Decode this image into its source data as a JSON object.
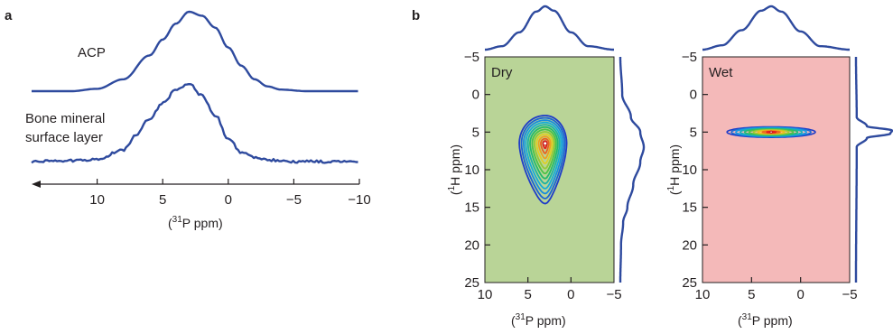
{
  "panels": {
    "a": {
      "letter": "a",
      "xlabel_main": "(",
      "xlabel_sup": "31",
      "xlabel_rest": "P ppm)",
      "x_ticks": [
        "10",
        "5",
        "0",
        "−5",
        "−10"
      ]
    },
    "b": {
      "letter": "b",
      "xlabel_main": "(",
      "xlabel_sup": "31",
      "xlabel_rest": "P ppm)",
      "ylabel_main": "(",
      "ylabel_sup": "1",
      "ylabel_rest": "H ppm)",
      "x_ticks": [
        "10",
        "5",
        "0",
        "−5"
      ],
      "y_ticks": [
        "−5",
        "0",
        "5",
        "10",
        "15",
        "20",
        "25"
      ],
      "dry_label": "Dry",
      "wet_label": "Wet"
    }
  },
  "colors": {
    "trace": "#2e4a9e",
    "dry_bg": "#b9d497",
    "wet_bg": "#f4b9b9"
  },
  "chart_data": [
    {
      "type": "line",
      "panel": "a",
      "xlabel": "(31P ppm)",
      "ylabel": "",
      "xlim": [
        15,
        -10
      ],
      "x_reversed": true,
      "x_ticks": [
        10,
        5,
        0,
        -5,
        -10
      ],
      "series": [
        {
          "name": "ACP",
          "points": [
            [
              15,
              0.0
            ],
            [
              12,
              0.0
            ],
            [
              10,
              0.03
            ],
            [
              8,
              0.15
            ],
            [
              6,
              0.45
            ],
            [
              5,
              0.65
            ],
            [
              4,
              0.85
            ],
            [
              3,
              1.0
            ],
            [
              2,
              0.95
            ],
            [
              1,
              0.8
            ],
            [
              0,
              0.55
            ],
            [
              -1,
              0.32
            ],
            [
              -2,
              0.15
            ],
            [
              -3,
              0.06
            ],
            [
              -4,
              0.02
            ],
            [
              -6,
              0.0
            ],
            [
              -10,
              0.0
            ]
          ]
        },
        {
          "name": "Bone mineral surface layer",
          "points": [
            [
              15,
              0.0
            ],
            [
              12,
              0.01
            ],
            [
              10,
              0.03
            ],
            [
              8,
              0.15
            ],
            [
              7,
              0.35
            ],
            [
              6,
              0.55
            ],
            [
              5,
              0.75
            ],
            [
              4,
              0.92
            ],
            [
              3,
              1.0
            ],
            [
              2,
              0.85
            ],
            [
              1,
              0.6
            ],
            [
              0,
              0.3
            ],
            [
              -1,
              0.12
            ],
            [
              -2,
              0.05
            ],
            [
              -3,
              0.02
            ],
            [
              -5,
              0.0
            ],
            [
              -10,
              0.0
            ]
          ]
        }
      ]
    },
    {
      "type": "heatmap",
      "panel": "b",
      "subtype": "2D contour",
      "condition": "Dry",
      "xlabel": "(31P ppm)",
      "ylabel": "(1H ppm)",
      "xlim": [
        10,
        -5
      ],
      "ylim": [
        -5,
        25
      ],
      "peak": {
        "x": 3,
        "y": 6.5
      },
      "contour_extent": {
        "x": [
          0.5,
          6
        ],
        "y": [
          2.8,
          14.5
        ]
      },
      "levels": 12,
      "projection_top_31P": [
        [
          10,
          0.0
        ],
        [
          8,
          0.08
        ],
        [
          6,
          0.4
        ],
        [
          4,
          0.88
        ],
        [
          3,
          1.0
        ],
        [
          2,
          0.9
        ],
        [
          0,
          0.4
        ],
        [
          -2,
          0.08
        ],
        [
          -5,
          0.0
        ]
      ],
      "projection_right_1H": [
        [
          -5,
          0.0
        ],
        [
          0,
          0.08
        ],
        [
          3,
          0.45
        ],
        [
          5,
          0.85
        ],
        [
          7,
          1.0
        ],
        [
          9,
          0.85
        ],
        [
          12,
          0.55
        ],
        [
          15,
          0.3
        ],
        [
          17,
          0.12
        ],
        [
          20,
          0.03
        ],
        [
          25,
          0.0
        ]
      ]
    },
    {
      "type": "heatmap",
      "panel": "b",
      "subtype": "2D contour",
      "condition": "Wet",
      "xlabel": "(31P ppm)",
      "ylabel": "(1H ppm)",
      "xlim": [
        10,
        -5
      ],
      "ylim": [
        -5,
        25
      ],
      "peak": {
        "x": 3,
        "y": 5
      },
      "contour_extent": {
        "x": [
          -1.5,
          7.5
        ],
        "y": [
          4.3,
          5.7
        ]
      },
      "levels": 10,
      "projection_top_31P": [
        [
          10,
          0.0
        ],
        [
          8,
          0.1
        ],
        [
          6,
          0.45
        ],
        [
          4,
          0.9
        ],
        [
          3,
          1.0
        ],
        [
          2,
          0.88
        ],
        [
          0,
          0.42
        ],
        [
          -2,
          0.08
        ],
        [
          -5,
          0.0
        ]
      ],
      "projection_right_1H": [
        [
          -5,
          0.0
        ],
        [
          3,
          0.02
        ],
        [
          4.2,
          0.3
        ],
        [
          4.8,
          1.0
        ],
        [
          5.2,
          0.95
        ],
        [
          5.8,
          0.3
        ],
        [
          7,
          0.02
        ],
        [
          25,
          0.0
        ]
      ]
    }
  ]
}
